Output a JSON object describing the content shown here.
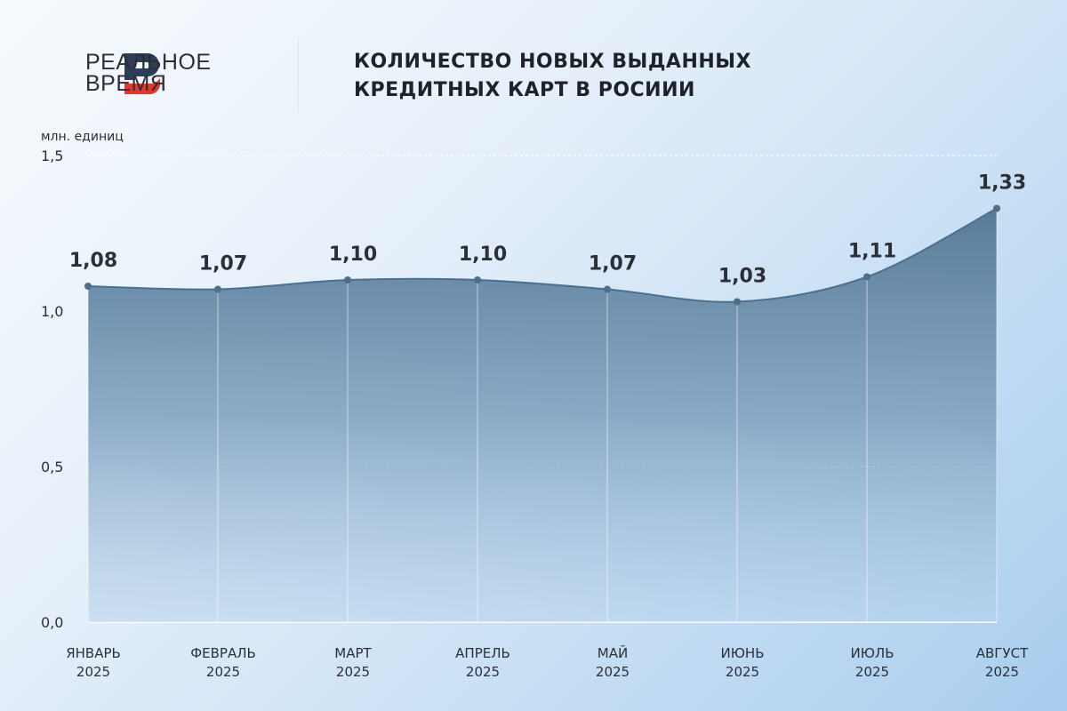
{
  "logo": {
    "line1": "РЕАЛЬНОЕ",
    "line2": "ВРЕМЯ"
  },
  "title": {
    "line1": "КОЛИЧЕСТВО НОВЫХ ВЫДАННЫХ",
    "line2": "КРЕДИТНЫХ КАРТ В РОСИИИ"
  },
  "chart_data": {
    "type": "area",
    "title": "КОЛИЧЕСТВО НОВЫХ ВЫДАННЫХ КРЕДИТНЫХ КАРТ В РОСИИИ",
    "ylabel": "млн. единиц",
    "ylim": [
      0,
      1.5
    ],
    "yticks": [
      0,
      0.5,
      1.0,
      1.5
    ],
    "ytick_labels": [
      "0,0",
      "0,5",
      "1,0",
      "1,5"
    ],
    "categories": [
      {
        "month": "ЯНВАРЬ",
        "year": "2025"
      },
      {
        "month": "ФЕВРАЛЬ",
        "year": "2025"
      },
      {
        "month": "МАРТ",
        "year": "2025"
      },
      {
        "month": "АПРЕЛЬ",
        "year": "2025"
      },
      {
        "month": "МАЙ",
        "year": "2025"
      },
      {
        "month": "ИЮНЬ",
        "year": "2025"
      },
      {
        "month": "ИЮЛЬ",
        "year": "2025"
      },
      {
        "month": "АВГУСТ",
        "year": "2025"
      }
    ],
    "values": [
      1.08,
      1.07,
      1.1,
      1.1,
      1.07,
      1.03,
      1.11,
      1.33
    ],
    "value_labels": [
      "1,08",
      "1,07",
      "1,10",
      "1,10",
      "1,07",
      "1,03",
      "1,11",
      "1,33"
    ],
    "grid": true,
    "colors": {
      "fill_top": "#5a7d9a",
      "line": "#4d6f8c"
    }
  }
}
